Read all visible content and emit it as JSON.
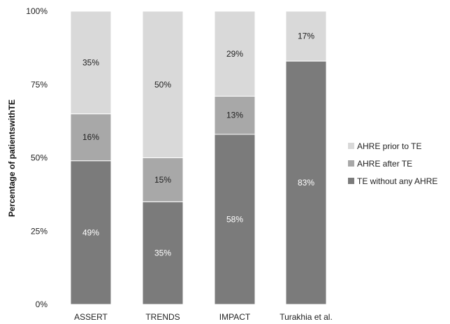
{
  "chart_data": {
    "type": "bar",
    "stacked": true,
    "orientation": "vertical",
    "categories": [
      "ASSERT",
      "TRENDS",
      "IMPACT",
      "Turakhia et al."
    ],
    "series": [
      {
        "name": "TE without any AHRE",
        "values": [
          49,
          35,
          58,
          83
        ],
        "labels": [
          "49%",
          "35%",
          "58%",
          "83%"
        ],
        "color": "#7b7b7b",
        "label_color": "#ffffff"
      },
      {
        "name": "AHRE after TE",
        "values": [
          16,
          15,
          13,
          0
        ],
        "labels": [
          "16%",
          "15%",
          "13%",
          ""
        ],
        "color": "#a8a8a8",
        "label_color": "#222222"
      },
      {
        "name": "AHRE prior to TE",
        "values": [
          35,
          50,
          29,
          17
        ],
        "labels": [
          "35%",
          "50%",
          "29%",
          "17%"
        ],
        "color": "#d9d9d9",
        "label_color": "#222222"
      }
    ],
    "legend_order": [
      "AHRE prior to TE",
      "AHRE after TE",
      "TE without any AHRE"
    ],
    "legend_position": "right",
    "ylabel": "Percentage of patientswithTE",
    "xlabel": "",
    "ylim": [
      0,
      100
    ],
    "yticks": [
      0,
      25,
      50,
      75,
      100
    ],
    "ytick_labels": [
      "0%",
      "25%",
      "50%",
      "75%",
      "100%"
    ],
    "grid": false
  }
}
